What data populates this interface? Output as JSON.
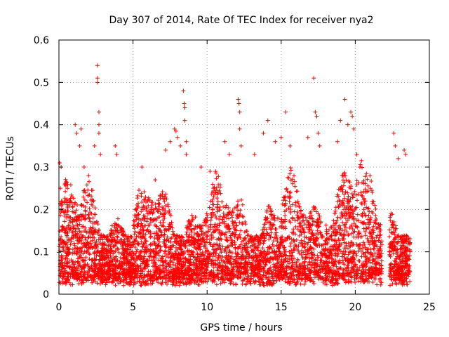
{
  "chart_data": {
    "type": "scatter",
    "title": "Day 307 of 2014, Rate Of TEC Index for receiver nya2",
    "xlabel": "GPS time / hours",
    "ylabel": "ROTI / TECUs",
    "xlim": [
      0,
      25
    ],
    "ylim": [
      0,
      0.6
    ],
    "x_ticks": [
      0,
      5,
      10,
      15,
      20,
      25
    ],
    "x_tick_labels": [
      "0",
      "5",
      "10",
      "15",
      "20",
      "25"
    ],
    "y_ticks": [
      0,
      0.1,
      0.2,
      0.3,
      0.4,
      0.5,
      0.6
    ],
    "y_tick_labels": [
      "0",
      "0.1",
      "0.2",
      "0.3",
      "0.4",
      "0.5",
      "0.6"
    ],
    "grid": true,
    "marker": "+",
    "series_color": "#ff0000",
    "data_gap_hours": [
      21.8,
      22.3
    ],
    "series": [
      {
        "name": "nya2",
        "points": [
          [
            0.05,
            0.31
          ],
          [
            0.1,
            0.25
          ],
          [
            0.15,
            0.3
          ],
          [
            0.2,
            0.22
          ],
          [
            1.1,
            0.4
          ],
          [
            1.2,
            0.38
          ],
          [
            1.4,
            0.35
          ],
          [
            1.5,
            0.39
          ],
          [
            1.7,
            0.3
          ],
          [
            2.0,
            0.28
          ],
          [
            2.4,
            0.35
          ],
          [
            2.6,
            0.54
          ],
          [
            2.6,
            0.51
          ],
          [
            2.6,
            0.5
          ],
          [
            2.7,
            0.43
          ],
          [
            2.7,
            0.4
          ],
          [
            2.7,
            0.38
          ],
          [
            2.8,
            0.33
          ],
          [
            3.8,
            0.35
          ],
          [
            3.9,
            0.33
          ],
          [
            5.6,
            0.3
          ],
          [
            6.5,
            0.27
          ],
          [
            7.2,
            0.34
          ],
          [
            7.5,
            0.36
          ],
          [
            7.8,
            0.39
          ],
          [
            7.9,
            0.385
          ],
          [
            8.0,
            0.37
          ],
          [
            8.2,
            0.35
          ],
          [
            8.4,
            0.48
          ],
          [
            8.45,
            0.45
          ],
          [
            8.5,
            0.44
          ],
          [
            8.5,
            0.41
          ],
          [
            8.6,
            0.36
          ],
          [
            8.6,
            0.33
          ],
          [
            9.6,
            0.3
          ],
          [
            10.2,
            0.29
          ],
          [
            11.2,
            0.36
          ],
          [
            11.5,
            0.33
          ],
          [
            12.1,
            0.46
          ],
          [
            12.15,
            0.45
          ],
          [
            12.2,
            0.43
          ],
          [
            12.2,
            0.39
          ],
          [
            12.3,
            0.35
          ],
          [
            13.2,
            0.33
          ],
          [
            13.8,
            0.38
          ],
          [
            14.1,
            0.41
          ],
          [
            14.6,
            0.36
          ],
          [
            15.0,
            0.37
          ],
          [
            15.3,
            0.43
          ],
          [
            15.6,
            0.35
          ],
          [
            16.8,
            0.37
          ],
          [
            17.2,
            0.51
          ],
          [
            17.3,
            0.43
          ],
          [
            17.4,
            0.42
          ],
          [
            17.5,
            0.38
          ],
          [
            17.6,
            0.35
          ],
          [
            18.8,
            0.36
          ],
          [
            19.0,
            0.41
          ],
          [
            19.3,
            0.46
          ],
          [
            19.5,
            0.4
          ],
          [
            19.7,
            0.43
          ],
          [
            19.8,
            0.42
          ],
          [
            19.9,
            0.39
          ],
          [
            20.1,
            0.33
          ],
          [
            22.6,
            0.38
          ],
          [
            22.7,
            0.35
          ],
          [
            22.9,
            0.32
          ],
          [
            23.3,
            0.34
          ],
          [
            23.4,
            0.33
          ]
        ]
      }
    ]
  }
}
